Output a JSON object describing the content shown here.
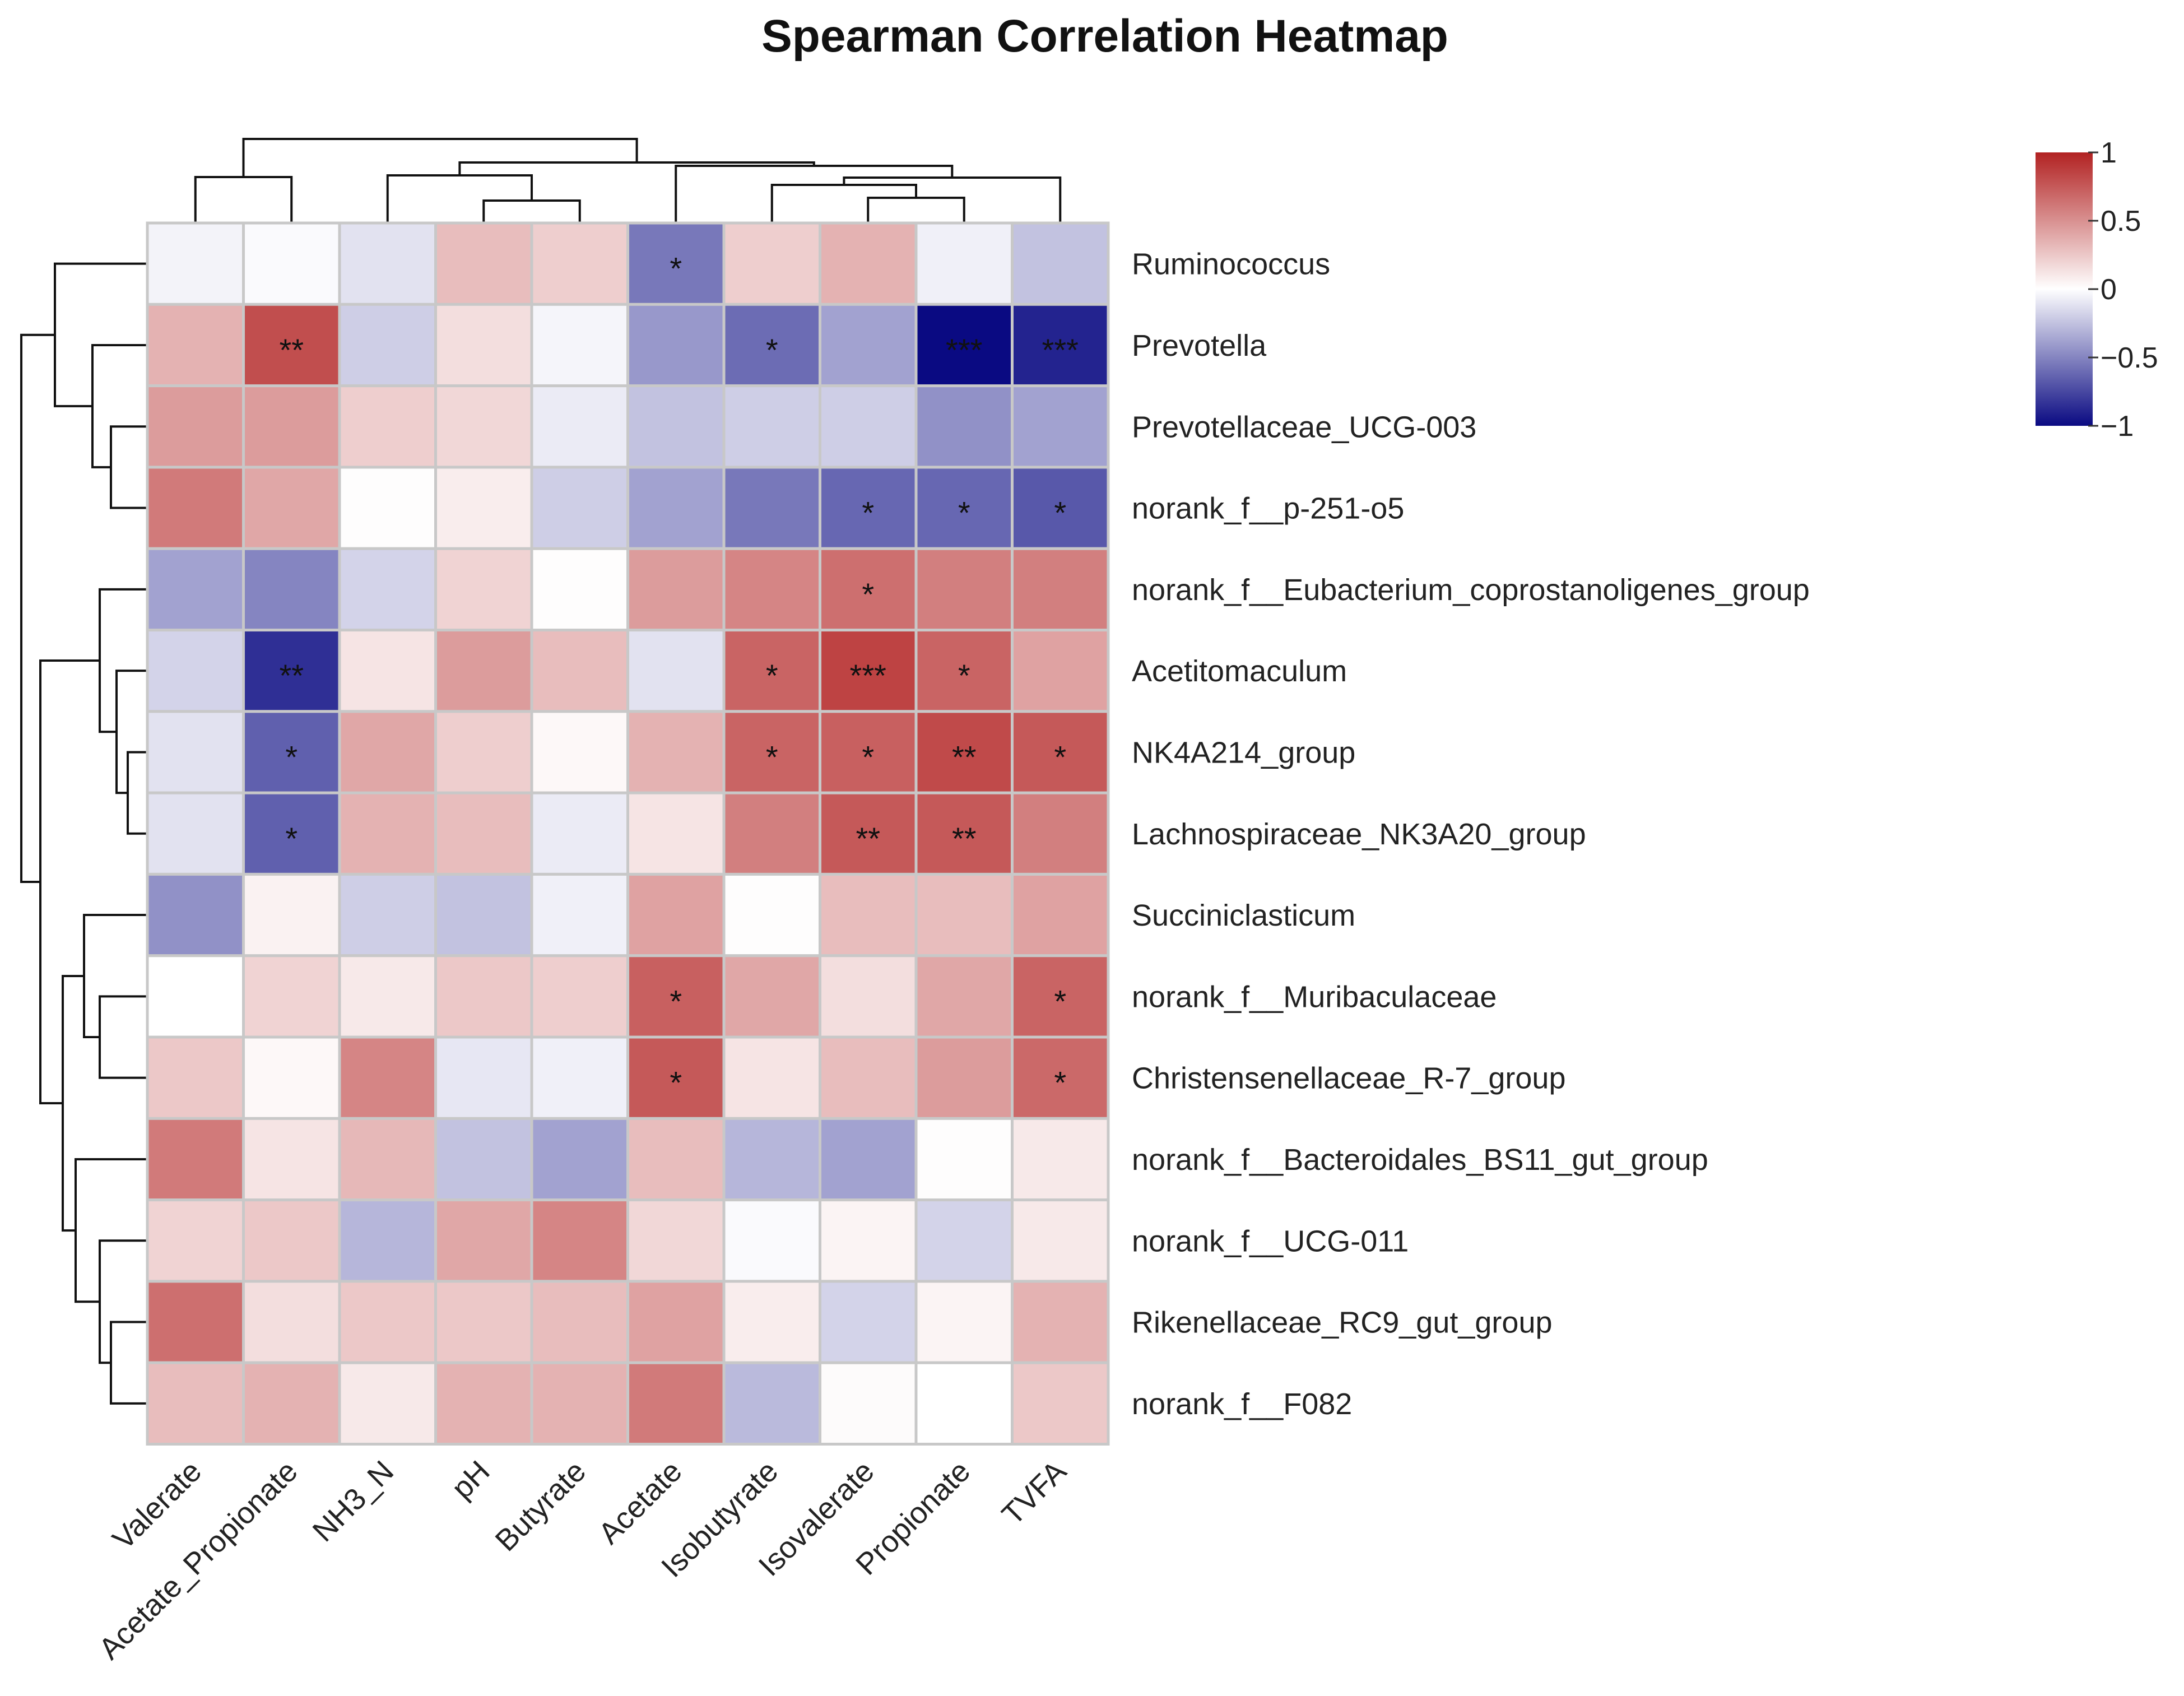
{
  "chart_data": {
    "type": "heatmap",
    "title": "Spearman Correlation Heatmap",
    "columns": [
      "Valerate",
      "Acetate_Propionate",
      "NH3_N",
      "pH",
      "Butyrate",
      "Acetate",
      "Isobutyrate",
      "Isovalerate",
      "Propionate",
      "TVFA"
    ],
    "rows": [
      "Ruminococcus",
      "Prevotella",
      "Prevotellaceae_UCG-003",
      "norank_f__p-251-o5",
      "norank_f__Eubacterium_coprostanoligenes_group",
      "Acetitomaculum",
      "NK4A214_group",
      "Lachnospiraceae_NK3A20_group",
      "Succiniclasticum",
      "norank_f__Muribaculaceae",
      "Christensenellaceae_R-7_group",
      "norank_f__Bacteroidales_BS11_gut_group",
      "norank_f__UCG-011",
      "Rikenellaceae_RC9_gut_group",
      "norank_f__F082"
    ],
    "values": [
      [
        -0.05,
        -0.02,
        -0.12,
        0.3,
        0.22,
        -0.55,
        0.22,
        0.35,
        -0.06,
        -0.25
      ],
      [
        0.35,
        0.8,
        -0.2,
        0.15,
        -0.04,
        -0.42,
        -0.6,
        -0.38,
        -1.0,
        -0.9
      ],
      [
        0.45,
        0.45,
        0.22,
        0.18,
        -0.08,
        -0.25,
        -0.2,
        -0.2,
        -0.45,
        -0.38
      ],
      [
        0.6,
        0.4,
        0.01,
        0.08,
        -0.2,
        -0.38,
        -0.55,
        -0.62,
        -0.62,
        -0.68
      ],
      [
        -0.38,
        -0.5,
        -0.18,
        0.2,
        0.01,
        0.45,
        0.55,
        0.65,
        0.58,
        0.58
      ],
      [
        -0.18,
        -0.85,
        0.12,
        0.45,
        0.3,
        -0.12,
        0.7,
        0.85,
        0.7,
        0.42
      ],
      [
        -0.12,
        -0.65,
        0.4,
        0.22,
        0.03,
        0.35,
        0.7,
        0.72,
        0.82,
        0.75
      ],
      [
        -0.12,
        -0.65,
        0.35,
        0.3,
        -0.08,
        0.12,
        0.58,
        0.75,
        0.75,
        0.58
      ],
      [
        -0.45,
        0.06,
        -0.2,
        -0.25,
        -0.06,
        0.42,
        0.01,
        0.3,
        0.3,
        0.42
      ],
      [
        0.0,
        0.2,
        0.1,
        0.25,
        0.22,
        0.72,
        0.4,
        0.15,
        0.4,
        0.7
      ],
      [
        0.25,
        0.03,
        0.55,
        -0.1,
        -0.06,
        0.75,
        0.12,
        0.3,
        0.45,
        0.68
      ],
      [
        0.6,
        0.12,
        0.32,
        -0.25,
        -0.38,
        0.3,
        -0.3,
        -0.38,
        0.01,
        0.1
      ],
      [
        0.2,
        0.25,
        -0.3,
        0.4,
        0.55,
        0.18,
        -0.02,
        0.05,
        -0.18,
        0.1
      ],
      [
        0.65,
        0.15,
        0.25,
        0.25,
        0.3,
        0.42,
        0.08,
        -0.18,
        0.05,
        0.35
      ],
      [
        0.3,
        0.35,
        0.1,
        0.35,
        0.35,
        0.6,
        -0.28,
        0.02,
        0.0,
        0.25
      ]
    ],
    "significance": [
      [
        "",
        "",
        "",
        "",
        "",
        "*",
        "",
        "",
        "",
        ""
      ],
      [
        "",
        "**",
        "",
        "",
        "",
        "",
        "*",
        "",
        "***",
        "***"
      ],
      [
        "",
        "",
        "",
        "",
        "",
        "",
        "",
        "",
        "",
        ""
      ],
      [
        "",
        "",
        "",
        "",
        "",
        "",
        "",
        "*",
        "*",
        "*"
      ],
      [
        "",
        "",
        "",
        "",
        "",
        "",
        "",
        "*",
        "",
        ""
      ],
      [
        "",
        "**",
        "",
        "",
        "",
        "",
        "*",
        "***",
        "*",
        ""
      ],
      [
        "",
        "*",
        "",
        "",
        "",
        "",
        "*",
        "*",
        "**",
        "*"
      ],
      [
        "",
        "*",
        "",
        "",
        "",
        "",
        "",
        "**",
        "**",
        ""
      ],
      [
        "",
        "",
        "",
        "",
        "",
        "",
        "",
        "",
        "",
        ""
      ],
      [
        "",
        "",
        "",
        "",
        "",
        "*",
        "",
        "",
        "",
        "*"
      ],
      [
        "",
        "",
        "",
        "",
        "",
        "*",
        "",
        "",
        "",
        "*"
      ],
      [
        "",
        "",
        "",
        "",
        "",
        "",
        "",
        "",
        "",
        ""
      ],
      [
        "",
        "",
        "",
        "",
        "",
        "",
        "",
        "",
        "",
        ""
      ],
      [
        "",
        "",
        "",
        "",
        "",
        "",
        "",
        "",
        "",
        ""
      ],
      [
        "",
        "",
        "",
        "",
        "",
        "",
        "",
        "",
        "",
        ""
      ]
    ],
    "color_scale": {
      "range": [
        -1,
        1
      ],
      "ticks": [
        1,
        0.5,
        0,
        -0.5,
        -1
      ],
      "tick_labels": [
        "1",
        "0.5",
        "0",
        "−0.5",
        "−1"
      ],
      "low_color": "#0a0a82",
      "mid_color": "#ffffff",
      "high_color": "#b22222"
    },
    "legend_position": "top-right",
    "row_dendrogram": true,
    "column_dendrogram": true
  }
}
